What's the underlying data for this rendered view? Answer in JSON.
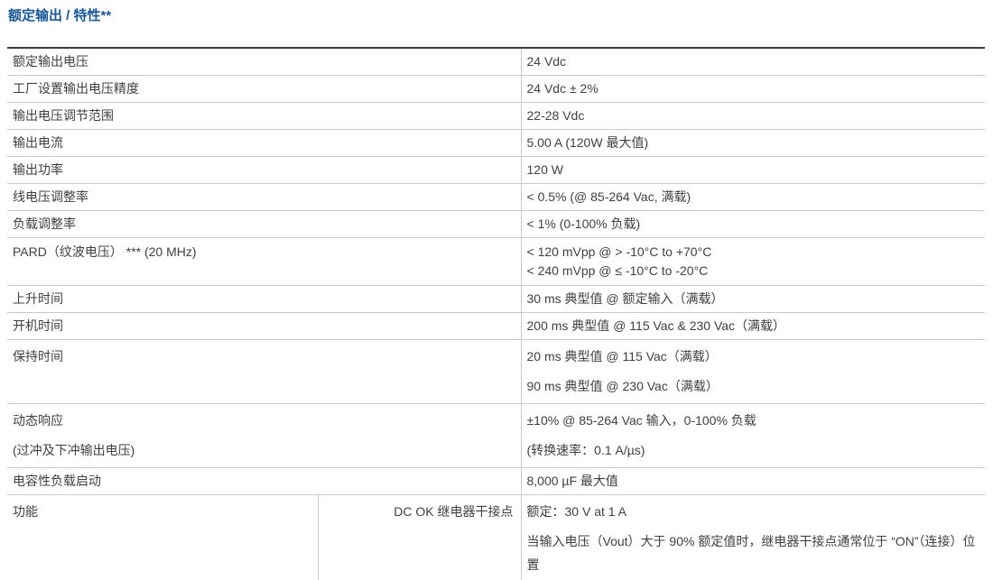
{
  "page": {
    "title": "额定输出 / 特性**"
  },
  "colors": {
    "title_blue": "#1a5796",
    "table_top_border": "#3b3b3b",
    "grid_line": "#c9c9c9",
    "body_text": "#404040",
    "background": "#ffffff"
  },
  "table": {
    "rows": [
      {
        "label_lines": [
          "额定输出电压"
        ],
        "value_lines": [
          "24 Vdc"
        ]
      },
      {
        "label_lines": [
          "工厂设置输出电压精度"
        ],
        "value_lines": [
          "24 Vdc ± 2%"
        ]
      },
      {
        "label_lines": [
          "输出电压调节范围"
        ],
        "value_lines": [
          "22-28 Vdc"
        ]
      },
      {
        "label_lines": [
          "输出电流"
        ],
        "value_lines": [
          "5.00 A (120W 最大值)"
        ]
      },
      {
        "label_lines": [
          "输出功率"
        ],
        "value_lines": [
          "120 W"
        ]
      },
      {
        "label_lines": [
          "线电压调整率"
        ],
        "value_lines": [
          "< 0.5% (@ 85-264 Vac, 满载)"
        ]
      },
      {
        "label_lines": [
          "负载调整率"
        ],
        "value_lines": [
          "< 1% (0-100% 负载)"
        ]
      },
      {
        "label_lines": [
          "PARD（纹波电压） *** (20 MHz)"
        ],
        "value_lines": [
          "< 120 mVpp @ > -10°C to +70°C",
          "< 240 mVpp @ ≤ -10°C to -20°C"
        ],
        "style": "tight"
      },
      {
        "label_lines": [
          "上升时间"
        ],
        "value_lines": [
          "30 ms 典型值 @ 额定输入（满载）"
        ]
      },
      {
        "label_lines": [
          "开机时间"
        ],
        "value_lines": [
          "200 ms 典型值 @ 115 Vac & 230 Vac（满载）"
        ]
      },
      {
        "label_lines": [
          "保持时间"
        ],
        "value_lines": [
          "20 ms 典型值 @ 115 Vac（满载）",
          "90 ms 典型值 @ 230 Vac（满载）"
        ],
        "style": "spaced"
      },
      {
        "label_lines": [
          "动态响应",
          "(过冲及下冲输出电压)"
        ],
        "value_lines": [
          "±10% @ 85-264 Vac 输入，0-100% 负载",
          "(转换速率：0.1 A/µs)"
        ],
        "style": "spaced"
      },
      {
        "label_lines": [
          "电容性负载启动"
        ],
        "value_lines": [
          "8,000 µF 最大值"
        ]
      },
      {
        "label_lines": [
          "功能"
        ],
        "mid_label": "DC OK 继电器干接点",
        "value_lines": [
          "额定：30 V at 1 A",
          "当输入电压（Vout）大于 90% 额定值时，继电器干接点通常位于 “ON”（连接）位置"
        ],
        "style": "spaced"
      }
    ]
  }
}
